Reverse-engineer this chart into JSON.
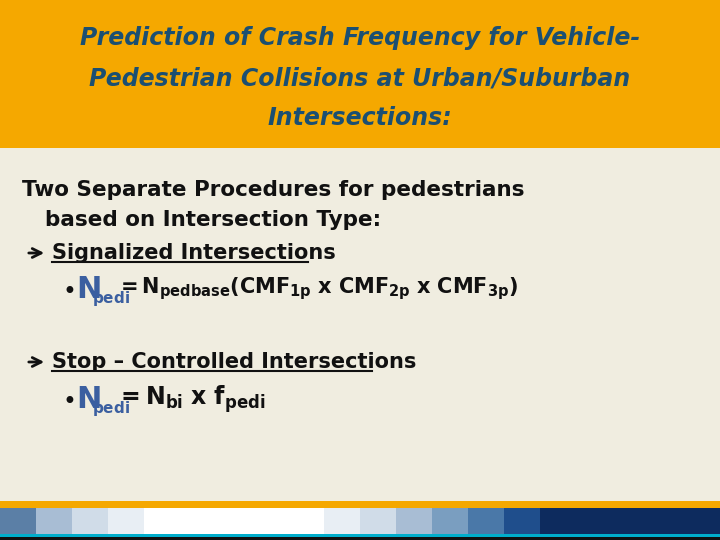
{
  "title_bg": "#F5A800",
  "title_color": "#1B4F72",
  "body_bg": "#F0EDE0",
  "blue_accent": "#3B5FA0",
  "footer_gold": "#F5A800",
  "footer_teal": "#00AECC",
  "footer_dark_blue": "#0D2B5E",
  "footer_blocks": [
    "#5B7FA6",
    "#A8BDD4",
    "#D0DCE8",
    "#E8EEF4",
    "#FFFFFF",
    "#FFFFFF",
    "#FFFFFF",
    "#FFFFFF",
    "#FFFFFF",
    "#E8EEF4",
    "#D0DCE8",
    "#A8BDD4",
    "#7A9EC0",
    "#4A78A8",
    "#1F4E8C",
    "#0D2B5E",
    "#0D2B5E",
    "#0D2B5E",
    "#0D2B5E",
    "#0D2B5E"
  ],
  "title_lines": [
    "Prediction of Crash Frequency for Vehicle-",
    "Pedestrian Collisions at Urban/Suburban",
    "Intersections:"
  ],
  "intro_line1": "Two Separate Procedures for pedestrians",
  "intro_line2": "based on Intersection Type:",
  "heading1": "Signalized Intersections",
  "heading2": "Stop – Controlled Intersections"
}
